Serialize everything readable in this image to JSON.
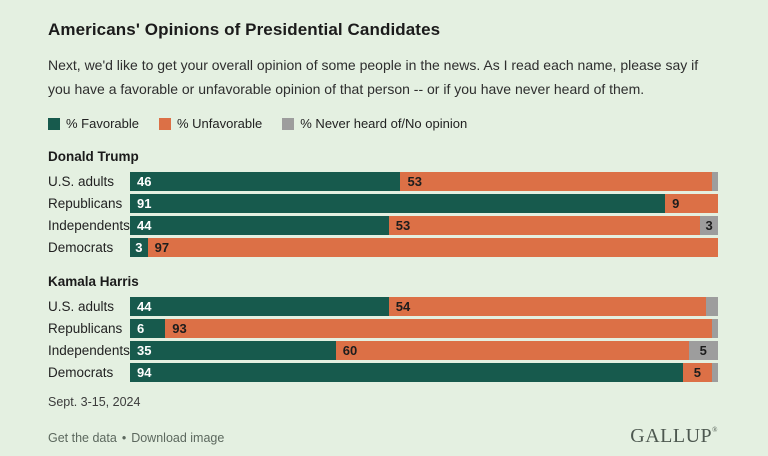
{
  "title": "Americans' Opinions of Presidential Candidates",
  "subtitle": "Next, we'd like to get your overall opinion of some people in the news. As I read each name, please say if you have a favorable or unfavorable opinion of that person -- or if you have never heard of them.",
  "series_colors": {
    "favorable": "#175a4d",
    "unfavorable": "#dc7046",
    "never_heard": "#9d9d9d"
  },
  "legend": [
    {
      "series": "favorable",
      "label": "% Favorable"
    },
    {
      "series": "unfavorable",
      "label": "% Unfavorable"
    },
    {
      "series": "never_heard",
      "label": "% Never heard of/No opinion"
    }
  ],
  "chart_data": {
    "type": "bar",
    "orientation": "horizontal",
    "stacked": true,
    "value_unit": "percent",
    "axis_range": [
      0,
      100
    ],
    "series": [
      "% Favorable",
      "% Unfavorable",
      "% Never heard of/No opinion"
    ],
    "groups": [
      {
        "name": "Donald Trump",
        "rows": [
          {
            "category": "U.S. adults",
            "segments": [
              {
                "series": "favorable",
                "value": 46,
                "label": "46"
              },
              {
                "series": "unfavorable",
                "value": 53,
                "label": "53"
              },
              {
                "series": "never_heard",
                "value": 1,
                "label": ""
              }
            ]
          },
          {
            "category": "Republicans",
            "segments": [
              {
                "series": "favorable",
                "value": 91,
                "label": "91"
              },
              {
                "series": "unfavorable",
                "value": 9,
                "label": "9"
              }
            ]
          },
          {
            "category": "Independents",
            "segments": [
              {
                "series": "favorable",
                "value": 44,
                "label": "44"
              },
              {
                "series": "unfavorable",
                "value": 53,
                "label": "53"
              },
              {
                "series": "never_heard",
                "value": 3,
                "label": "3"
              }
            ]
          },
          {
            "category": "Democrats",
            "segments": [
              {
                "series": "favorable",
                "value": 3,
                "label": "3"
              },
              {
                "series": "unfavorable",
                "value": 97,
                "label": "97"
              }
            ]
          }
        ]
      },
      {
        "name": "Kamala Harris",
        "rows": [
          {
            "category": "U.S. adults",
            "segments": [
              {
                "series": "favorable",
                "value": 44,
                "label": "44"
              },
              {
                "series": "unfavorable",
                "value": 54,
                "label": "54"
              },
              {
                "series": "never_heard",
                "value": 2,
                "label": ""
              }
            ]
          },
          {
            "category": "Republicans",
            "segments": [
              {
                "series": "favorable",
                "value": 6,
                "label": "6"
              },
              {
                "series": "unfavorable",
                "value": 93,
                "label": "93"
              },
              {
                "series": "never_heard",
                "value": 1,
                "label": ""
              }
            ]
          },
          {
            "category": "Independents",
            "segments": [
              {
                "series": "favorable",
                "value": 35,
                "label": "35"
              },
              {
                "series": "unfavorable",
                "value": 60,
                "label": "60"
              },
              {
                "series": "never_heard",
                "value": 5,
                "label": "5"
              }
            ]
          },
          {
            "category": "Democrats",
            "segments": [
              {
                "series": "favorable",
                "value": 94,
                "label": "94"
              },
              {
                "series": "unfavorable",
                "value": 5,
                "label": "5"
              },
              {
                "series": "never_heard",
                "value": 1,
                "label": ""
              }
            ]
          }
        ]
      }
    ]
  },
  "footer": {
    "date": "Sept. 3-15, 2024",
    "links": [
      "Get the data",
      "Download image"
    ],
    "separator": "•",
    "brand": "GALLUP",
    "brand_mark": "®"
  },
  "colors": {
    "background": "#e4f0e1"
  }
}
